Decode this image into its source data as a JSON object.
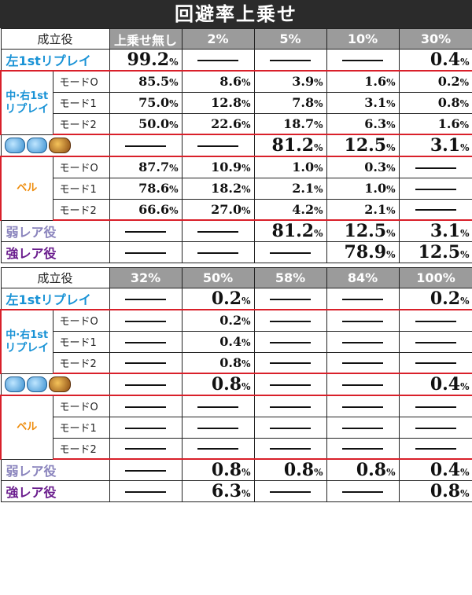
{
  "title": "回避率上乗せ",
  "icons": [
    "helmet-icon",
    "helmet-icon",
    "lion-icon"
  ],
  "section1": {
    "header": {
      "category": "成立役",
      "cols": [
        "上乗せ無し",
        "2%",
        "5%",
        "10%",
        "30%"
      ]
    },
    "left1st": {
      "label": "左1stリプレイ",
      "v": [
        "99.2",
        "—",
        "—",
        "—",
        "0.4"
      ]
    },
    "midright": {
      "label1": "中·右1st",
      "label2": "リプレイ",
      "modes": [
        {
          "name": "モードO",
          "v": [
            "85.5",
            "8.6",
            "3.9",
            "1.6",
            "0.2"
          ]
        },
        {
          "name": "モード1",
          "v": [
            "75.0",
            "12.8",
            "7.8",
            "3.1",
            "0.8"
          ]
        },
        {
          "name": "モード2",
          "v": [
            "50.0",
            "22.6",
            "18.7",
            "6.3",
            "1.6"
          ]
        }
      ]
    },
    "iconrow": {
      "v": [
        "—",
        "—",
        "81.2",
        "12.5",
        "3.1"
      ]
    },
    "bell": {
      "label": "ベル",
      "modes": [
        {
          "name": "モードO",
          "v": [
            "87.7",
            "10.9",
            "1.0",
            "0.3",
            "—"
          ]
        },
        {
          "name": "モード1",
          "v": [
            "78.6",
            "18.2",
            "2.1",
            "1.0",
            "—"
          ]
        },
        {
          "name": "モード2",
          "v": [
            "66.6",
            "27.0",
            "4.2",
            "2.1",
            "—"
          ]
        }
      ]
    },
    "weak": {
      "label": "弱レア役",
      "v": [
        "—",
        "—",
        "81.2",
        "12.5",
        "3.1"
      ]
    },
    "strong": {
      "label": "強レア役",
      "v": [
        "—",
        "—",
        "—",
        "78.9",
        "12.5"
      ]
    }
  },
  "section2": {
    "header": {
      "category": "成立役",
      "cols": [
        "32%",
        "50%",
        "58%",
        "84%",
        "100%"
      ]
    },
    "left1st": {
      "label": "左1stリプレイ",
      "v": [
        "—",
        "0.2",
        "—",
        "—",
        "0.2"
      ]
    },
    "midright": {
      "label1": "中·右1st",
      "label2": "リプレイ",
      "modes": [
        {
          "name": "モードO",
          "v": [
            "—",
            "0.2",
            "—",
            "—",
            "—"
          ]
        },
        {
          "name": "モード1",
          "v": [
            "—",
            "0.4",
            "—",
            "—",
            "—"
          ]
        },
        {
          "name": "モード2",
          "v": [
            "—",
            "0.8",
            "—",
            "—",
            "—"
          ]
        }
      ]
    },
    "iconrow": {
      "v": [
        "—",
        "0.8",
        "—",
        "—",
        "0.4"
      ]
    },
    "bell": {
      "label": "ベル",
      "modes": [
        {
          "name": "モードO",
          "v": [
            "—",
            "—",
            "—",
            "—",
            "—"
          ]
        },
        {
          "name": "モード1",
          "v": [
            "—",
            "—",
            "—",
            "—",
            "—"
          ]
        },
        {
          "name": "モード2",
          "v": [
            "—",
            "—",
            "—",
            "—",
            "—"
          ]
        }
      ]
    },
    "weak": {
      "label": "弱レア役",
      "v": [
        "—",
        "0.8",
        "0.8",
        "0.8",
        "0.4"
      ]
    },
    "strong": {
      "label": "強レア役",
      "v": [
        "—",
        "6.3",
        "—",
        "—",
        "0.8"
      ]
    }
  },
  "colors": {
    "header_bg": "#2b2b2b",
    "col_bg": "#9b9b9b",
    "blue": "#1a93d6",
    "orange": "#ee8b0a",
    "weak": "#8a84bd",
    "strong": "#6b1e8e",
    "red_rule": "#d9202a"
  }
}
